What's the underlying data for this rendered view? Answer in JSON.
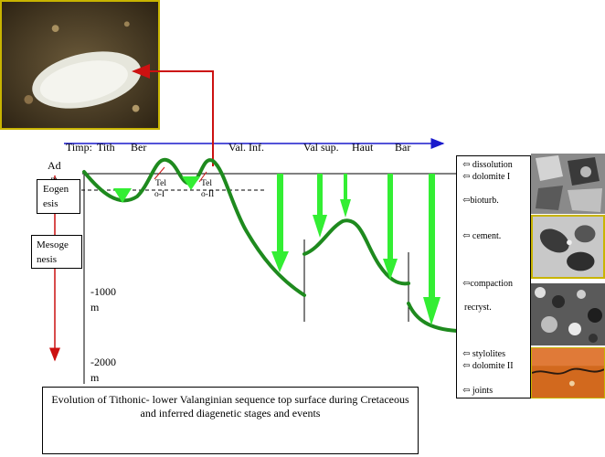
{
  "timeline": {
    "label": "Timp:",
    "stages": [
      "Tith",
      "Ber",
      "Val. Inf.",
      "Val sup.",
      "Haut",
      "Bar"
    ]
  },
  "depth": {
    "top": "Ad",
    "top_sub": "- m",
    "mark_1000": "-1000",
    "mark_1000_unit": "m",
    "mark_2000": "-2000",
    "mark_2000_unit": "m"
  },
  "stages_boxes": {
    "eogenesis": [
      "Eogen",
      "esis"
    ],
    "mesogenesis": [
      "Mesoge",
      "nesis"
    ]
  },
  "telo": {
    "t1": [
      "Tel",
      "o-I"
    ],
    "t2": [
      "Tel",
      "o-II"
    ]
  },
  "events": {
    "dissolution": "⇦ dissolution",
    "dolomite_i": "⇦ dolomite I",
    "bioturb": "⇦bioturb.",
    "cement": "⇦ cement.",
    "compaction": "⇦compaction",
    "recryst": "recryst.",
    "stylolites": "⇦ stylolites",
    "dolomite_ii": "⇦ dolomite II",
    "joints": "⇦ joints"
  },
  "caption": "Evolution of Tithonic- lower Valanginian sequence top surface during Cretaceous and inferred diagenetic stages and events",
  "colors": {
    "curve": "#1e8a1e",
    "green_arrow": "#33ee33",
    "red_arrow": "#cc1111",
    "time_axis": "#1a1acc"
  }
}
